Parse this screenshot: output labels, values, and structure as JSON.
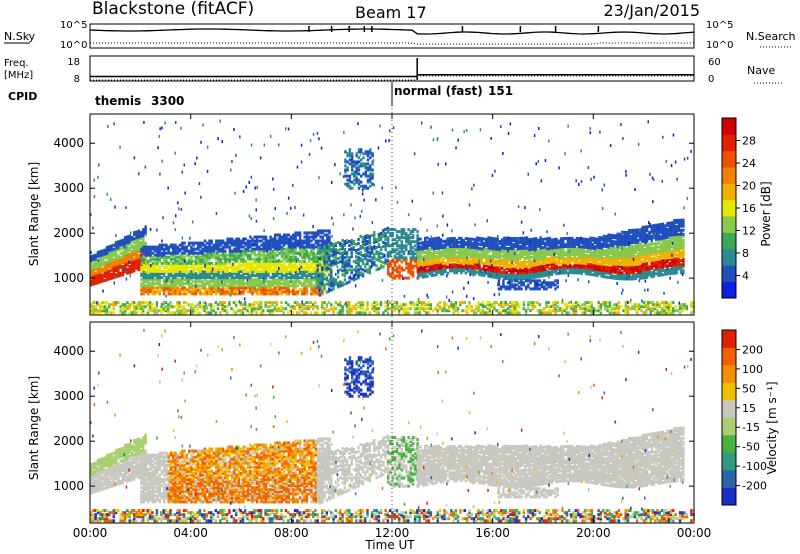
{
  "chart_data": {
    "type": "heatmap",
    "title": {
      "station": "Blackstone (fitACF)",
      "beam": "Beam 17",
      "date": "23/Jan/2015"
    },
    "xlabel": "Time UT",
    "x_ticks": [
      "00:00",
      "04:00",
      "08:00",
      "12:00",
      "16:00",
      "20:00",
      "00:00"
    ],
    "xlim_hours": [
      0,
      24
    ],
    "summary_panel": {
      "left_labels": {
        "nsky": "N.Sky",
        "freq_top": "Freq.",
        "freq_unit": "[MHz]",
        "cpid": "CPID"
      },
      "right_labels": {
        "nsearch": "N.Search",
        "nave": "Nave"
      },
      "nsky_ticks": [
        "10^5",
        "10^0"
      ],
      "freq_ticks": [
        "18",
        "8"
      ],
      "nave_ticks": [
        "60",
        "0"
      ],
      "cpid_modes": [
        {
          "name": "themis",
          "id": "3300",
          "start_h": 0,
          "end_h": 12
        },
        {
          "name": "normal (fast)",
          "id": "151",
          "start_h": 12,
          "end_h": 24
        }
      ],
      "freq_mhz": [
        {
          "start_h": 0,
          "end_h": 13,
          "value": 9.6
        },
        {
          "start_h": 13,
          "end_h": 24,
          "value": 10.4
        }
      ],
      "nave": [
        {
          "start_h": 0,
          "end_h": 13,
          "value": 0
        },
        {
          "start_h": 13,
          "end_h": 24,
          "value": 11
        }
      ]
    },
    "panels": [
      {
        "name": "power",
        "ylabel": "Slant Range [km]",
        "y_ticks": [
          1000,
          2000,
          3000,
          4000
        ],
        "ylim": [
          180,
          4650
        ],
        "colorbar_label": "Power [dB]",
        "colorbar_ticks": [
          "28",
          "24",
          "20",
          "16",
          "12",
          "8",
          "4"
        ],
        "colors": [
          "#0a1ee6",
          "#1f4fbd",
          "#2a8a8f",
          "#3caa55",
          "#88c84a",
          "#e6e600",
          "#f0b000",
          "#f08000",
          "#ec5000",
          "#e02000",
          "#d00000"
        ]
      },
      {
        "name": "velocity",
        "ylabel": "Slant Range [km]",
        "y_ticks": [
          1000,
          2000,
          3000,
          4000
        ],
        "ylim": [
          180,
          4650
        ],
        "colorbar_label": "Velocity [m s⁻¹]",
        "colorbar_ticks": [
          "200",
          "100",
          "50",
          "15",
          "-15",
          "-50",
          "-100",
          "-200"
        ],
        "colors": [
          "#1a2ec8",
          "#2d66a8",
          "#2f9a80",
          "#46b43c",
          "#a8d070",
          "#c8c8c0",
          "#f0c000",
          "#f09000",
          "#f06000",
          "#e02000"
        ]
      }
    ]
  }
}
